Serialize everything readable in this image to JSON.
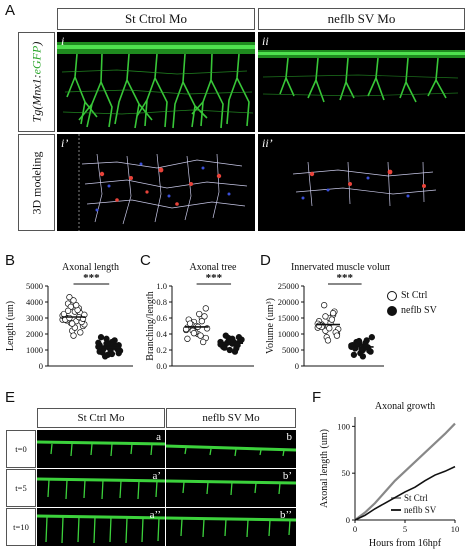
{
  "panels": {
    "A": {
      "letter": "A",
      "columns": [
        "St Ctrol Mo",
        "neflb SV Mo"
      ],
      "rows": [
        "Tg(Mnx1:eGFP)",
        "3D modeling"
      ],
      "tags": [
        "i",
        "ii",
        "i’",
        "ii’"
      ]
    },
    "B": {
      "letter": "B"
    },
    "C": {
      "letter": "C"
    },
    "D": {
      "letter": "D"
    },
    "E": {
      "letter": "E",
      "columns": [
        "St Ctrl Mo",
        "neflb SV Mo"
      ],
      "rows": [
        "t=0",
        "t=5",
        "t=10"
      ],
      "tags_left": [
        "a",
        "a’",
        "a’’"
      ],
      "tags_right": [
        "b",
        "b’",
        "b’’"
      ]
    },
    "F": {
      "letter": "F"
    }
  },
  "legend_D": [
    "St Ctrl",
    "neflb SV"
  ],
  "colors": {
    "ctrl_fill": "#ffffff",
    "mut_fill": "#111111",
    "axon": "#3cd23c",
    "model_red": "#e8433a",
    "model_blue": "#3a4fd8"
  },
  "chart_data": [
    {
      "type": "scatter",
      "title": "Axonal length",
      "ylabel": "Length (um)",
      "ylim": [
        0,
        5000
      ],
      "yticks": [
        "0",
        "1000",
        "2000",
        "3000",
        "4000",
        "5000"
      ],
      "significance": "***",
      "series": [
        {
          "name": "St Ctrl",
          "values": [
            2900,
            3000,
            2700,
            3400,
            3600,
            2500,
            3100,
            3900,
            2200,
            2800,
            3300,
            2600,
            3000,
            4300,
            1900,
            3500,
            2750,
            3150,
            2850,
            3700,
            2400,
            3050,
            2950,
            3250,
            3450,
            2650,
            3800,
            2100,
            3200,
            2900,
            3000,
            4100
          ]
        },
        {
          "name": "neflb SV",
          "values": [
            1200,
            900,
            1400,
            1000,
            1600,
            800,
            1300,
            1100,
            700,
            1500,
            1250,
            950,
            1800,
            600,
            1150,
            1350,
            1050,
            1450,
            850,
            1700,
            1000,
            1200,
            1300,
            900,
            1100,
            1400,
            750,
            1250
          ]
        }
      ]
    },
    {
      "type": "scatter",
      "title": "Axonal tree",
      "ylabel": "Branching/length",
      "ylim": [
        0,
        1.0
      ],
      "yticks": [
        "0.0",
        "0.2",
        "0.4",
        "0.6",
        "0.8",
        "1.0"
      ],
      "significance": "***",
      "series": [
        {
          "name": "St Ctrl",
          "values": [
            0.45,
            0.5,
            0.55,
            0.4,
            0.6,
            0.35,
            0.48,
            0.52,
            0.42,
            0.65,
            0.3,
            0.47,
            0.58,
            0.44,
            0.5,
            0.38,
            0.62,
            0.46,
            0.53,
            0.41,
            0.49,
            0.56,
            0.72,
            0.34
          ]
        },
        {
          "name": "neflb SV",
          "values": [
            0.3,
            0.25,
            0.35,
            0.28,
            0.22,
            0.32,
            0.27,
            0.38,
            0.2,
            0.3,
            0.26,
            0.33,
            0.24,
            0.29,
            0.31,
            0.18,
            0.36,
            0.27,
            0.23,
            0.3,
            0.34,
            0.28
          ]
        }
      ]
    },
    {
      "type": "scatter",
      "title": "Innervated muscle volume",
      "ylabel": "Volume (um³)",
      "ylim": [
        0,
        25000
      ],
      "yticks": [
        "0",
        "5000",
        "10000",
        "15000",
        "20000",
        "25000"
      ],
      "significance": "***",
      "series": [
        {
          "name": "St Ctrl",
          "values": [
            12000,
            13000,
            11000,
            15000,
            16000,
            10000,
            14000,
            12500,
            9000,
            13500,
            17000,
            11500,
            12800,
            19000,
            8000,
            14500,
            10500,
            13200,
            12200,
            15500,
            11800,
            16500,
            9500,
            12600
          ]
        },
        {
          "name": "neflb SV",
          "values": [
            6000,
            5500,
            7000,
            5000,
            8000,
            4500,
            6500,
            7500,
            4000,
            6200,
            5800,
            9000,
            3500,
            6800,
            5200,
            7200,
            4800,
            6400,
            5600,
            7800,
            3000,
            6000
          ]
        }
      ]
    },
    {
      "type": "line",
      "title": "Axonal growth",
      "xlabel": "Hours from 16hpf",
      "ylabel": "Axonal length (um)",
      "xlim": [
        0,
        10
      ],
      "ylim": [
        0,
        110
      ],
      "xticks": [
        "0",
        "5",
        "10"
      ],
      "yticks": [
        "0",
        "50",
        "100"
      ],
      "series": [
        {
          "name": "St Ctrl",
          "x": [
            0,
            1,
            2,
            3,
            4,
            5,
            6,
            7,
            8,
            9,
            10
          ],
          "values": [
            0,
            8,
            18,
            30,
            42,
            52,
            62,
            72,
            82,
            92,
            103
          ]
        },
        {
          "name": "neflb SV",
          "x": [
            0,
            1,
            2,
            3,
            4,
            5,
            6,
            7,
            8,
            9,
            10
          ],
          "values": [
            0,
            5,
            12,
            18,
            24,
            30,
            35,
            42,
            48,
            52,
            57
          ]
        }
      ]
    }
  ]
}
